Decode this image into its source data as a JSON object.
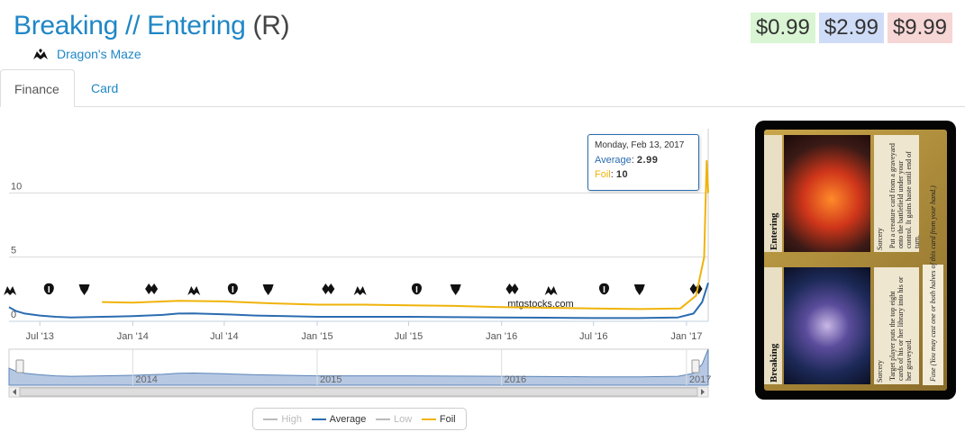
{
  "card": {
    "name": "Breaking // Entering",
    "rarity": "(R)",
    "set_name": "Dragon's Maze",
    "set_icon": "dragons-maze-set-icon"
  },
  "prices": {
    "normal": "$0.99",
    "foil": "$2.99",
    "high": "$9.99",
    "colors": {
      "normal": "#d9f5d3",
      "foil": "#cfdcf7",
      "high": "#f7d6d6"
    }
  },
  "tabs": [
    {
      "label": "Finance",
      "active": true
    },
    {
      "label": "Card",
      "active": false
    }
  ],
  "tooltip": {
    "date": "Monday, Feb 13, 2017",
    "average_label": "Average",
    "average_value": "2.99",
    "foil_label": "Foil",
    "foil_value": "10"
  },
  "legend": [
    {
      "label": "High",
      "color": "#bbbbbb",
      "active": false
    },
    {
      "label": "Average",
      "color": "#2b6cb0",
      "active": true
    },
    {
      "label": "Low",
      "color": "#bbbbbb",
      "active": false
    },
    {
      "label": "Foil",
      "color": "#f0b30a",
      "active": true
    }
  ],
  "watermark": "mtgstocks.com",
  "set_release_icons": [
    "dragons-maze-set-icon",
    "m14-set-icon",
    "theros-set-icon",
    "born-of-the-gods-set-icon",
    "journey-into-nyx-set-icon",
    "m15-set-icon",
    "khans-set-icon",
    "fate-reforged-set-icon",
    "dragons-of-tarkir-set-icon",
    "magic-origins-set-icon",
    "battle-for-zendikar-set-icon",
    "oath-of-the-gatewatch-set-icon",
    "shadows-over-innistrad-set-icon",
    "eldritch-moon-set-icon",
    "kaladesh-set-icon",
    "aether-revolt-set-icon"
  ],
  "chart_data": {
    "type": "line",
    "y_ticks": [
      "0",
      "5",
      "10"
    ],
    "ylim": [
      0,
      15
    ],
    "x_ticks": [
      "Jul '13",
      "Jan '14",
      "Jul '14",
      "Jan '15",
      "Jul '15",
      "Jan '16",
      "Jul '16",
      "Jan '17"
    ],
    "navigator_ticks": [
      "2014",
      "2015",
      "2016",
      "2017"
    ],
    "series": [
      {
        "name": "Average",
        "color": "#2b6cb0",
        "points": [
          [
            "2013-05-01",
            1.1
          ],
          [
            "2013-05-15",
            0.8
          ],
          [
            "2013-06-01",
            0.6
          ],
          [
            "2013-07-01",
            0.45
          ],
          [
            "2013-08-01",
            0.35
          ],
          [
            "2013-09-01",
            0.3
          ],
          [
            "2013-10-01",
            0.32
          ],
          [
            "2013-11-01",
            0.35
          ],
          [
            "2014-01-01",
            0.4
          ],
          [
            "2014-03-01",
            0.5
          ],
          [
            "2014-04-01",
            0.6
          ],
          [
            "2014-05-01",
            0.62
          ],
          [
            "2014-07-01",
            0.55
          ],
          [
            "2014-09-01",
            0.45
          ],
          [
            "2014-11-01",
            0.4
          ],
          [
            "2015-01-01",
            0.35
          ],
          [
            "2015-04-01",
            0.35
          ],
          [
            "2015-07-01",
            0.35
          ],
          [
            "2015-10-01",
            0.32
          ],
          [
            "2016-01-01",
            0.3
          ],
          [
            "2016-04-01",
            0.28
          ],
          [
            "2016-07-01",
            0.25
          ],
          [
            "2016-10-01",
            0.25
          ],
          [
            "2016-12-15",
            0.3
          ],
          [
            "2017-01-15",
            0.6
          ],
          [
            "2017-02-01",
            1.5
          ],
          [
            "2017-02-13",
            2.99
          ]
        ]
      },
      {
        "name": "Foil",
        "color": "#f0b30a",
        "points": [
          [
            "2013-11-01",
            1.5
          ],
          [
            "2014-01-01",
            1.45
          ],
          [
            "2014-04-01",
            1.6
          ],
          [
            "2014-07-01",
            1.55
          ],
          [
            "2014-10-01",
            1.4
          ],
          [
            "2015-01-01",
            1.3
          ],
          [
            "2015-04-01",
            1.3
          ],
          [
            "2015-07-01",
            1.25
          ],
          [
            "2015-10-01",
            1.2
          ],
          [
            "2016-01-01",
            1.1
          ],
          [
            "2016-04-01",
            1.05
          ],
          [
            "2016-07-01",
            1.0
          ],
          [
            "2016-10-01",
            0.95
          ],
          [
            "2016-12-20",
            1.0
          ],
          [
            "2017-01-20",
            2.0
          ],
          [
            "2017-02-05",
            5.0
          ],
          [
            "2017-02-10",
            12.5
          ],
          [
            "2017-02-13",
            10
          ]
        ]
      }
    ]
  }
}
